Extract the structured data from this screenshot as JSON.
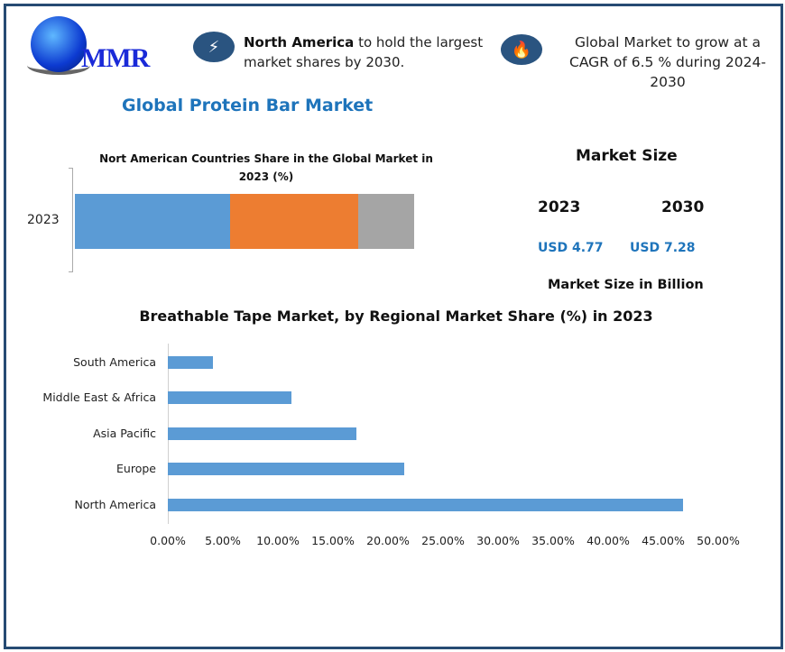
{
  "logo": {
    "text": "MMR"
  },
  "highlights": [
    {
      "icon": "lightning-icon",
      "bold": "North America",
      "text": " to hold the largest market shares by 2030."
    },
    {
      "icon": "flame-icon",
      "text": "Global Market to grow at a CAGR of 6.5 % during 2024-2030"
    }
  ],
  "title": "Global Protein Bar Market",
  "market_size": {
    "heading": "Market Size",
    "years": [
      "2023",
      "2030"
    ],
    "values": [
      "USD 4.77",
      "USD 7.28"
    ],
    "unit_label": "Market Size in Billion"
  },
  "colors": {
    "primary_blue": "#1e74bb",
    "bar_blue": "#5b9bd5",
    "orange": "#ed7d31",
    "gray": "#a5a5a5",
    "frame": "#264b73"
  },
  "chart_data": [
    {
      "type": "bar",
      "orientation": "horizontal-stacked",
      "title": "Nort American Countries Share in the Global Market in 2023 (%)",
      "categories": [
        "2023"
      ],
      "series": [
        {
          "values": [
            45.7
          ],
          "color": "#5b9bd5"
        },
        {
          "values": [
            37.8
          ],
          "color": "#ed7d31"
        },
        {
          "values": [
            16.5
          ],
          "color": "#a5a5a5"
        }
      ]
    },
    {
      "type": "bar",
      "orientation": "horizontal",
      "title": "Breathable Tape Market, by Regional Market Share (%) in 2023",
      "categories": [
        "South America",
        "Middle East & Africa",
        "Asia Pacific",
        "Europe",
        "North America"
      ],
      "values": [
        4.1,
        11.2,
        17.1,
        21.5,
        46.8
      ],
      "xlim": [
        0,
        50
      ],
      "xticks": [
        "0.00%",
        "5.00%",
        "10.00%",
        "15.00%",
        "20.00%",
        "25.00%",
        "30.00%",
        "35.00%",
        "40.00%",
        "45.00%",
        "50.00%"
      ],
      "grid": false,
      "color": "#5b9bd5"
    }
  ]
}
